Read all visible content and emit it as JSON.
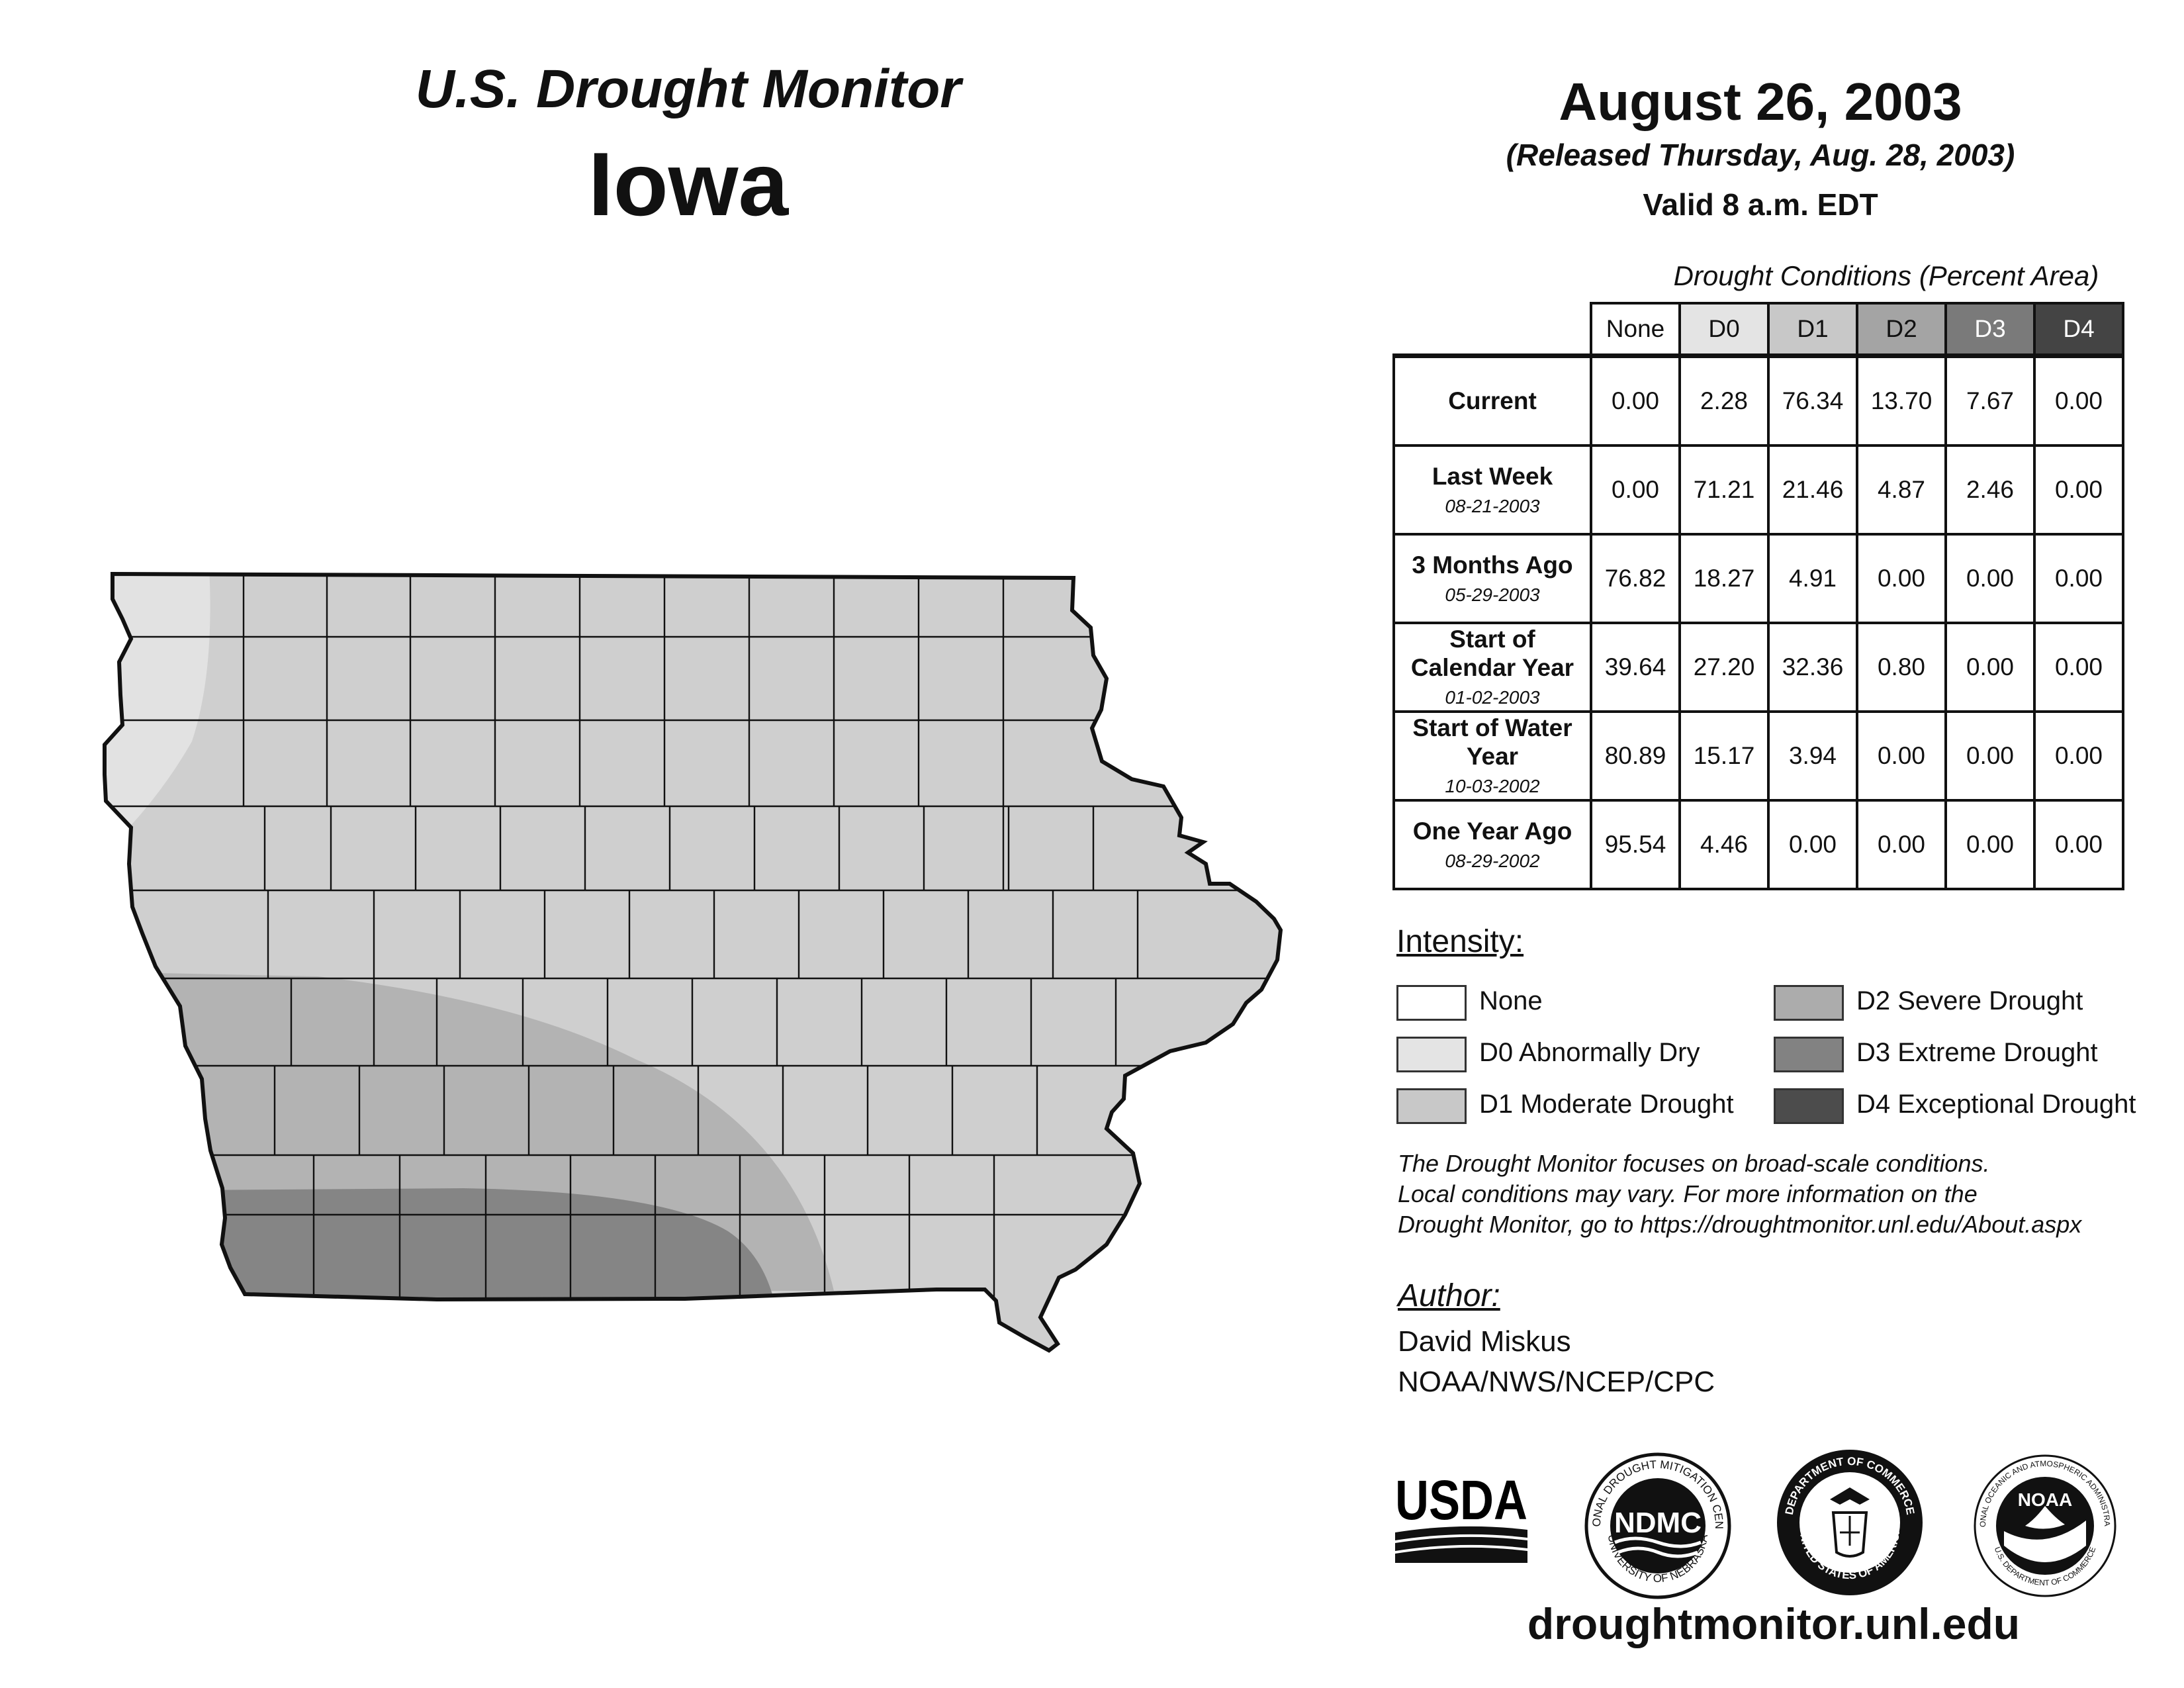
{
  "header": {
    "title": "U.S. Drought Monitor",
    "state": "Iowa",
    "date": "August 26, 2003",
    "released": "(Released Thursday, Aug. 28, 2003)",
    "valid": "Valid 8 a.m. EDT"
  },
  "table": {
    "title": "Drought Conditions (Percent Area)",
    "columns": [
      "None",
      "D0",
      "D1",
      "D2",
      "D3",
      "D4"
    ],
    "rows": [
      {
        "label": "Current",
        "date": "",
        "values": [
          "0.00",
          "2.28",
          "76.34",
          "13.70",
          "7.67",
          "0.00"
        ]
      },
      {
        "label": "Last Week",
        "date": "08-21-2003",
        "values": [
          "0.00",
          "71.21",
          "21.46",
          "4.87",
          "2.46",
          "0.00"
        ]
      },
      {
        "label": "3 Months Ago",
        "date": "05-29-2003",
        "values": [
          "76.82",
          "18.27",
          "4.91",
          "0.00",
          "0.00",
          "0.00"
        ]
      },
      {
        "label": "Start of Calendar Year",
        "date": "01-02-2003",
        "values": [
          "39.64",
          "27.20",
          "32.36",
          "0.80",
          "0.00",
          "0.00"
        ]
      },
      {
        "label": "Start of Water Year",
        "date": "10-03-2002",
        "values": [
          "80.89",
          "15.17",
          "3.94",
          "0.00",
          "0.00",
          "0.00"
        ]
      },
      {
        "label": "One Year Ago",
        "date": "08-29-2002",
        "values": [
          "95.54",
          "4.46",
          "0.00",
          "0.00",
          "0.00",
          "0.00"
        ]
      }
    ]
  },
  "legend": {
    "title": "Intensity:",
    "items": [
      {
        "label": "None",
        "color": "#ffffff"
      },
      {
        "label": "D0 Abnormally Dry",
        "color": "#e4e4e4"
      },
      {
        "label": "D1 Moderate Drought",
        "color": "#c8c8c8"
      },
      {
        "label": "D2 Severe Drought",
        "color": "#acacac"
      },
      {
        "label": "D3 Extreme Drought",
        "color": "#828282"
      },
      {
        "label": "D4 Exceptional Drought",
        "color": "#4c4c4c"
      }
    ]
  },
  "colors": {
    "none": "#ffffff",
    "d0": "#e4e4e4",
    "d1": "#cfcfcf",
    "d2": "#b2b2b2",
    "d3": "#858585",
    "d4": "#4c4c4c"
  },
  "note": {
    "line1": "The Drought Monitor focuses on broad-scale conditions.",
    "line2": "Local conditions may vary. For more information on the",
    "line3": "Drought Monitor, go to https://droughtmonitor.unl.edu/About.aspx"
  },
  "author": {
    "title": "Author:",
    "name": "David Miskus",
    "org": "NOAA/NWS/NCEP/CPC"
  },
  "logos": {
    "usda": "USDA",
    "ndmc": "NDMC",
    "ndmc_ring_top": "NATIONAL DROUGHT MITIGATION CENTER",
    "ndmc_ring_bottom": "UNIVERSITY OF NEBRASKA",
    "doc_ring_top": "DEPARTMENT OF COMMERCE",
    "doc_ring_bottom": "UNITED STATES OF AMERICA",
    "noaa": "NOAA",
    "noaa_ring_top": "NATIONAL OCEANIC AND ATMOSPHERIC ADMINISTRATION",
    "noaa_ring_bottom": "U.S. DEPARTMENT OF COMMERCE"
  },
  "site": "droughtmonitor.unl.edu"
}
